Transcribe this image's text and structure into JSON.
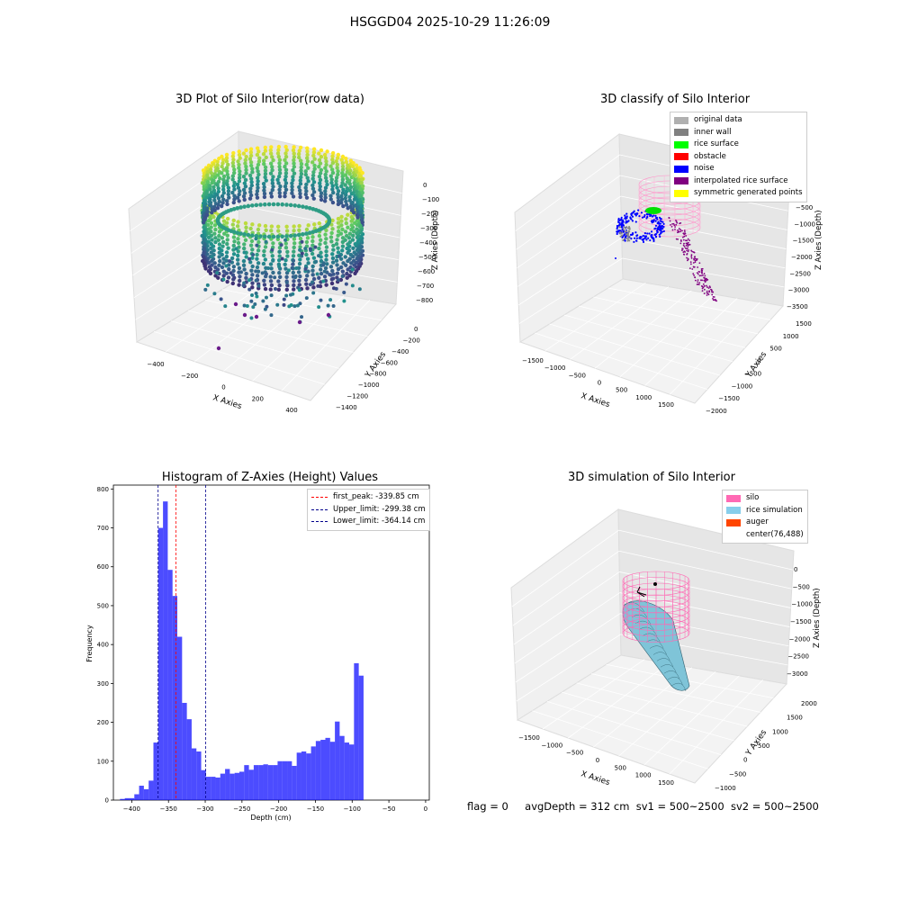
{
  "figure": {
    "suptitle": "HSGGD04 2025-10-29 11:26:09",
    "footer": {
      "flag": "flag = 0",
      "avg_depth": "avgDepth = 312 cm",
      "sv1": "sv1 = 500~2500",
      "sv2": "sv2 = 500~2500"
    }
  },
  "panels": {
    "raw": {
      "title": "3D Plot of Silo Interior(row data)",
      "xlabel": "X Axies",
      "ylabel": "Y Axies",
      "zlabel": "Z Axies (Depth)",
      "xticks": [
        "−400",
        "−200",
        "0",
        "200",
        "400"
      ],
      "yticks": [
        "0",
        "−200",
        "−400",
        "−600",
        "−800",
        "−1000",
        "−1200",
        "−1400"
      ],
      "zticks": [
        "0",
        "−100",
        "−200",
        "−300",
        "−400",
        "−500",
        "−600",
        "−700",
        "−800"
      ]
    },
    "classify": {
      "title": "3D classify of Silo Interior",
      "xlabel": "X Axies",
      "ylabel": "Y Axies",
      "zlabel": "Z Axies (Depth)",
      "xticks": [
        "−1500",
        "−1000",
        "−500",
        "0",
        "500",
        "1000",
        "1500"
      ],
      "yticks": [
        "1500",
        "1000",
        "500",
        "0",
        "−500",
        "−1000",
        "−1500",
        "−2000"
      ],
      "zticks": [
        "−500",
        "−1000",
        "−1500",
        "−2000",
        "−2500",
        "−3000",
        "−3500"
      ],
      "legend": [
        {
          "label": "original data",
          "color": "#b0b0b0"
        },
        {
          "label": "inner wall",
          "color": "#808080"
        },
        {
          "label": "rice surface",
          "color": "#00ff00"
        },
        {
          "label": "obstacle",
          "color": "#ff0000"
        },
        {
          "label": "noise",
          "color": "#0000ff"
        },
        {
          "label": "interpolated rice surface",
          "color": "#800080"
        },
        {
          "label": "symmetric generated points",
          "color": "#ffff00"
        }
      ]
    },
    "simulation": {
      "title": "3D simulation of Silo Interior",
      "xlabel": "X Axies",
      "ylabel": "Y Axies",
      "zlabel": "Z Axies (Depth)",
      "xticks": [
        "−1500",
        "−1000",
        "−500",
        "0",
        "500",
        "1000",
        "1500"
      ],
      "yticks": [
        "2000",
        "1500",
        "1000",
        "500",
        "0",
        "−500",
        "−1000"
      ],
      "zticks": [
        "0",
        "−500",
        "−1000",
        "−1500",
        "−2000",
        "−2500",
        "−3000"
      ],
      "legend": [
        {
          "label": "silo",
          "color": "#ff69b4"
        },
        {
          "label": "rice simulation",
          "color": "#87ceeb"
        },
        {
          "label": "auger",
          "color": "#ff4500"
        },
        {
          "label": "center(76,488)",
          "color": "#ffffff"
        }
      ]
    }
  },
  "chart_data": [
    {
      "type": "scatter",
      "title": "3D Plot of Silo Interior(row data)",
      "xlabel": "X Axies",
      "ylabel": "Y Axies",
      "zlabel": "Z Axies (Depth)",
      "xlim": [
        -500,
        450
      ],
      "ylim": [
        -1450,
        100
      ],
      "zlim": [
        -850,
        20
      ],
      "colormap": "viridis"
    },
    {
      "type": "scatter",
      "title": "3D classify of Silo Interior",
      "xlabel": "X Axies",
      "ylabel": "Y Axies",
      "zlabel": "Z Axies (Depth)",
      "xlim": [
        -1700,
        1700
      ],
      "ylim": [
        -2000,
        1700
      ],
      "zlim": [
        -3500,
        0
      ]
    },
    {
      "type": "bar",
      "title": "Histogram of Z-Axies (Height) Values",
      "xlabel": "Depth (cm)",
      "ylabel": "Frequency",
      "xlim": [
        -425,
        5
      ],
      "ylim": [
        0,
        810
      ],
      "bin_width": 6.5,
      "bin_start": -416,
      "values": [
        3,
        5,
        5,
        15,
        37,
        28,
        50,
        148,
        700,
        768,
        592,
        525,
        420,
        250,
        208,
        133,
        125,
        77,
        60,
        60,
        58,
        68,
        80,
        68,
        70,
        73,
        90,
        78,
        90,
        90,
        92,
        90,
        90,
        100,
        100,
        100,
        88,
        122,
        125,
        120,
        138,
        152,
        155,
        160,
        150,
        202,
        165,
        148,
        143,
        352,
        320
      ],
      "color": "#0000ff",
      "xticks": [
        "−400",
        "−350",
        "−300",
        "−250",
        "−200",
        "−150",
        "−100",
        "−50",
        "0"
      ],
      "yticks": [
        "0",
        "100",
        "200",
        "300",
        "400",
        "500",
        "600",
        "700",
        "800"
      ],
      "vlines": [
        {
          "label": "first_peak: -339.85 cm",
          "x": -339.85,
          "color": "#ff0000"
        },
        {
          "label": "Upper_limit: -299.38 cm",
          "x": -299.38,
          "color": "#00008b"
        },
        {
          "label": "Lower_limit: -364.14 cm",
          "x": -364.14,
          "color": "#00008b"
        }
      ]
    },
    {
      "type": "scatter",
      "title": "3D simulation of Silo Interior",
      "xlabel": "X Axies",
      "ylabel": "Y Axies",
      "zlabel": "Z Axies (Depth)",
      "xlim": [
        -1700,
        1700
      ],
      "ylim": [
        -1200,
        2200
      ],
      "zlim": [
        -3200,
        200
      ]
    }
  ]
}
